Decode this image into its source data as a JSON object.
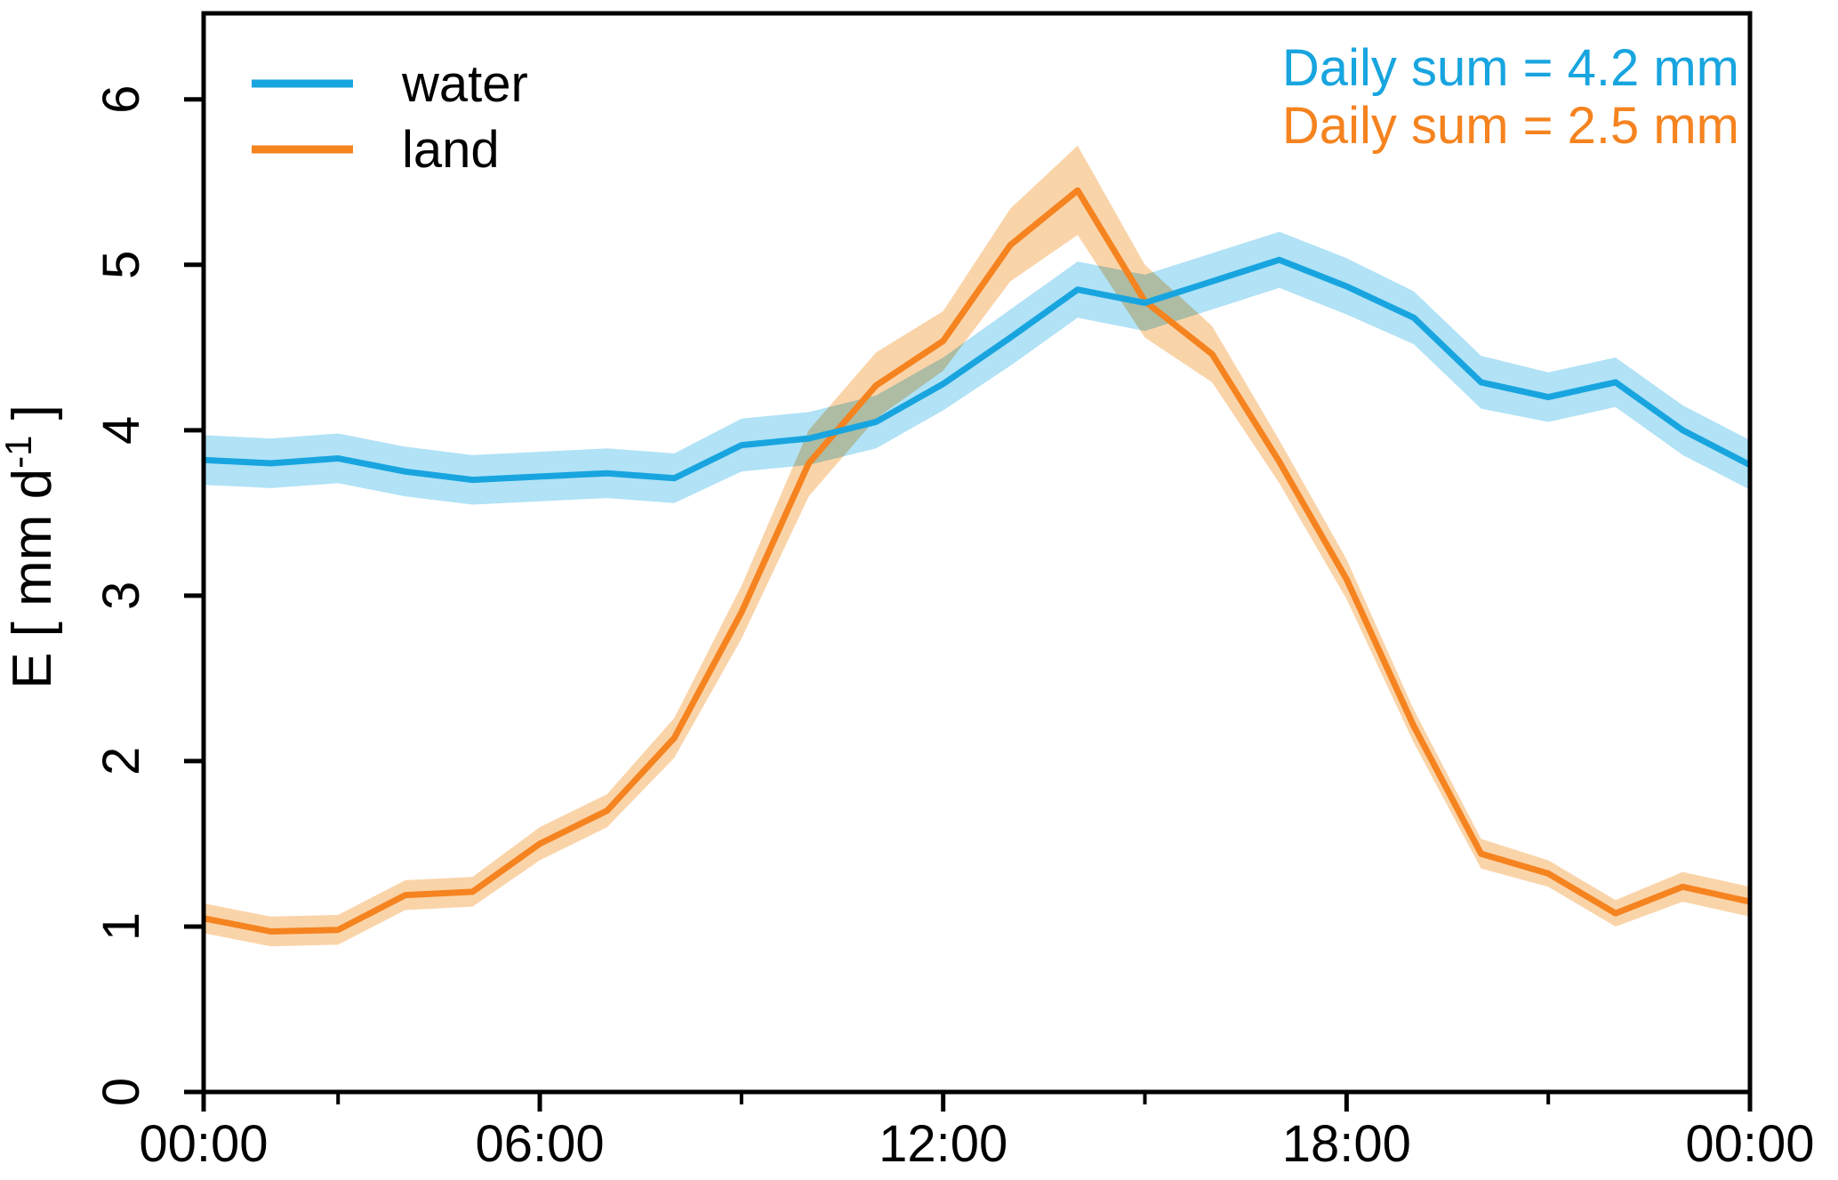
{
  "chart_data": {
    "type": "line",
    "title": "",
    "xlabel": "",
    "ylabel": "E [ mm d⁻¹ ]",
    "ylabel_parts": {
      "pre": "E  [ mm d",
      "sup": "-1",
      "post": " ]"
    },
    "ylim": [
      0,
      6.52
    ],
    "xlim_hours": [
      1,
      24
    ],
    "grid": false,
    "legend_position": "inside top-left",
    "x_hours": [
      1,
      2,
      3,
      4,
      5,
      6,
      7,
      8,
      9,
      10,
      11,
      12,
      13,
      14,
      15,
      16,
      17,
      18,
      19,
      20,
      21,
      22,
      23,
      24
    ],
    "x_ticks_major": {
      "hours": [
        1,
        6,
        12,
        18,
        24
      ],
      "labels": [
        "00:00",
        "06:00",
        "12:00",
        "18:00",
        "00:00"
      ]
    },
    "x_ticks_minor_hours": [
      3,
      9,
      15,
      21
    ],
    "y_ticks": [
      0,
      1,
      2,
      3,
      4,
      5,
      6
    ],
    "series": [
      {
        "name": "water",
        "color": "#18a5df",
        "band_color": "#a8dff5",
        "daily_sum_mm": 4.2,
        "values": [
          3.82,
          3.8,
          3.83,
          3.75,
          3.7,
          3.72,
          3.74,
          3.71,
          3.91,
          3.95,
          4.05,
          4.28,
          4.56,
          4.85,
          4.77,
          4.9,
          5.03,
          4.87,
          4.68,
          4.29,
          4.2,
          4.29,
          4.0,
          3.79
        ],
        "band_halfwidth": [
          0.15,
          0.15,
          0.15,
          0.15,
          0.15,
          0.15,
          0.15,
          0.15,
          0.16,
          0.16,
          0.16,
          0.16,
          0.17,
          0.17,
          0.17,
          0.17,
          0.17,
          0.17,
          0.16,
          0.16,
          0.15,
          0.15,
          0.15,
          0.15
        ]
      },
      {
        "name": "land",
        "color": "#f5831f",
        "band_color": "#facfa0",
        "daily_sum_mm": 2.5,
        "values": [
          1.05,
          0.97,
          0.98,
          1.19,
          1.21,
          1.5,
          1.7,
          2.14,
          2.9,
          3.8,
          4.27,
          4.54,
          5.12,
          5.45,
          4.78,
          4.46,
          3.81,
          3.1,
          2.21,
          1.44,
          1.32,
          1.08,
          1.24,
          1.15
        ],
        "band_halfwidth": [
          0.09,
          0.09,
          0.09,
          0.09,
          0.09,
          0.1,
          0.1,
          0.12,
          0.16,
          0.2,
          0.2,
          0.18,
          0.22,
          0.27,
          0.22,
          0.17,
          0.13,
          0.12,
          0.1,
          0.09,
          0.08,
          0.08,
          0.09,
          0.09
        ]
      }
    ],
    "annotations": [
      {
        "text": "Daily sum = 4.2 mm",
        "series": "water",
        "color": "#18a5df"
      },
      {
        "text": "Daily sum = 2.5 mm",
        "series": "land",
        "color": "#f5831f"
      }
    ]
  }
}
